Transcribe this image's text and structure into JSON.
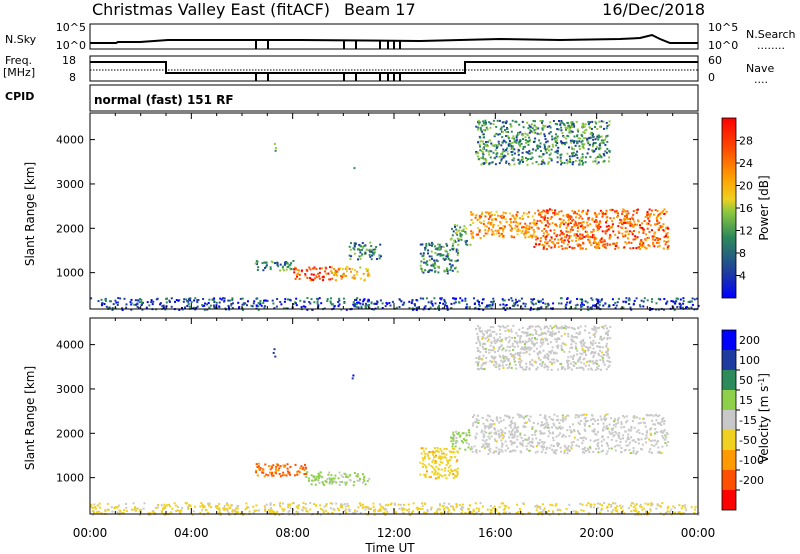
{
  "header": {
    "title": "Christmas Valley East (fitACF)",
    "beam": "Beam 17",
    "date": "16/Dec/2018"
  },
  "sky_panel": {
    "left_label": "N.Sky",
    "right_label": "N.Search",
    "tick_top": "10^5",
    "tick_bottom": "10^0"
  },
  "freq_panel": {
    "left_label_1": "Freq.",
    "left_label_2": "[MHz]",
    "right_label": "Nave",
    "left_ticks": [
      "18",
      "8"
    ],
    "right_ticks": [
      "60",
      "0"
    ]
  },
  "cpid": {
    "label": "CPID",
    "mode": "normal (fast) 151 RF"
  },
  "colors": {
    "power_scale": [
      "#0000ff",
      "#1e3ca0",
      "#2d8a5a",
      "#8fc840",
      "#f0d020",
      "#ff9a00",
      "#ff5000",
      "#ff0000"
    ],
    "velocity_scale": [
      "#ff0000",
      "#ff5000",
      "#ff9a00",
      "#f0d020",
      "#c8c8c8",
      "#8fd04a",
      "#2d8a5a",
      "#1e3ca0",
      "#0000ff"
    ],
    "ground_scatter": "#c8c8c8"
  },
  "chart_data": [
    {
      "type": "heatmap",
      "name": "power",
      "ylabel": "Slant Range [km]",
      "xlim": [
        "00:00",
        "24:00"
      ],
      "ylim": [
        180,
        4600
      ],
      "yticks": [
        1000,
        2000,
        3000,
        4000
      ],
      "colorbar": {
        "label": "Power [dB]",
        "ticks": [
          4,
          8,
          12,
          16,
          20,
          24,
          28
        ],
        "range": [
          0,
          32
        ]
      },
      "regions": [
        {
          "t": [
            7.2,
            7.3
          ],
          "r": [
            3750,
            4000
          ],
          "v": 14
        },
        {
          "t": [
            10.3,
            10.4
          ],
          "r": [
            3300,
            3400
          ],
          "v": 12
        },
        {
          "t": [
            6.5,
            8.0
          ],
          "r": [
            1050,
            1300
          ],
          "v": 10
        },
        {
          "t": [
            8.0,
            9.5
          ],
          "r": [
            850,
            1150
          ],
          "v": 27
        },
        {
          "t": [
            9.5,
            11.0
          ],
          "r": [
            850,
            1150
          ],
          "v": 20
        },
        {
          "t": [
            10.2,
            11.5
          ],
          "r": [
            1300,
            1700
          ],
          "v": 10
        },
        {
          "t": [
            13.0,
            14.5
          ],
          "r": [
            1000,
            1700
          ],
          "v": 9
        },
        {
          "t": [
            14.2,
            15.0
          ],
          "r": [
            1650,
            2100
          ],
          "v": 12
        },
        {
          "t": [
            15.0,
            17.5
          ],
          "r": [
            1800,
            2400
          ],
          "v": 22
        },
        {
          "t": [
            17.5,
            22.8
          ],
          "r": [
            1550,
            2450
          ],
          "v": 25
        },
        {
          "t": [
            15.2,
            20.5
          ],
          "r": [
            3450,
            4450
          ],
          "v": 10
        },
        {
          "t": [
            0.0,
            24.0
          ],
          "r": [
            180,
            450
          ],
          "v": 6
        }
      ]
    },
    {
      "type": "heatmap",
      "name": "velocity",
      "ylabel": "Slant Range [km]",
      "xlabel": "Time UT",
      "xticks": [
        "00:00",
        "04:00",
        "08:00",
        "12:00",
        "16:00",
        "20:00",
        "00:00"
      ],
      "ylim": [
        180,
        4600
      ],
      "yticks": [
        1000,
        2000,
        3000,
        4000
      ],
      "colorbar": {
        "label": "Velocity [m s^-1]",
        "ticks": [
          200,
          100,
          50,
          15,
          -15,
          -50,
          -100,
          -200
        ],
        "range": [
          -250,
          250
        ]
      },
      "regions": [
        {
          "t": [
            7.2,
            7.3
          ],
          "r": [
            3750,
            4000
          ],
          "v": 180
        },
        {
          "t": [
            10.3,
            10.4
          ],
          "r": [
            3200,
            3400
          ],
          "v": 200
        },
        {
          "t": [
            6.5,
            8.5
          ],
          "r": [
            1050,
            1350
          ],
          "v": -150
        },
        {
          "t": [
            8.5,
            11.0
          ],
          "r": [
            850,
            1150
          ],
          "v": 40
        },
        {
          "t": [
            13.0,
            14.5
          ],
          "r": [
            1000,
            1700
          ],
          "v": -60
        },
        {
          "t": [
            14.2,
            15.0
          ],
          "r": [
            1650,
            2100
          ],
          "v": 40
        },
        {
          "t": [
            15.0,
            22.8
          ],
          "r": [
            1550,
            2450
          ],
          "v": 0
        },
        {
          "t": [
            15.2,
            20.5
          ],
          "r": [
            3450,
            4450
          ],
          "v": 0
        },
        {
          "t": [
            0.0,
            24.0
          ],
          "r": [
            180,
            450
          ],
          "v": -40
        }
      ]
    }
  ]
}
